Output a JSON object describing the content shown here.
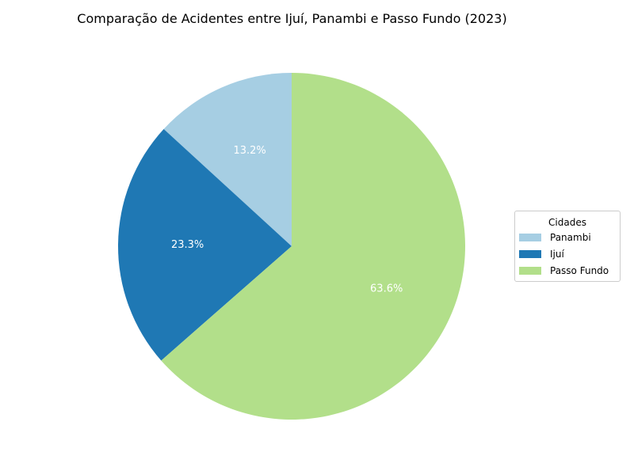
{
  "chart_data": {
    "type": "pie",
    "title": "Comparação de Acidentes entre Ijuí, Panambi e Passo Fundo (2023)",
    "legend_title": "Cidades",
    "legend_position": "right",
    "slices": [
      {
        "label": "Panambi",
        "value": 13.2,
        "pct_label": "13.2%",
        "color": "#a6cee3"
      },
      {
        "label": "Ijuí",
        "value": 23.3,
        "pct_label": "23.3%",
        "color": "#1f78b4"
      },
      {
        "label": "Passo Fundo",
        "value": 63.6,
        "pct_label": "63.6%",
        "color": "#b2df8a"
      }
    ]
  }
}
